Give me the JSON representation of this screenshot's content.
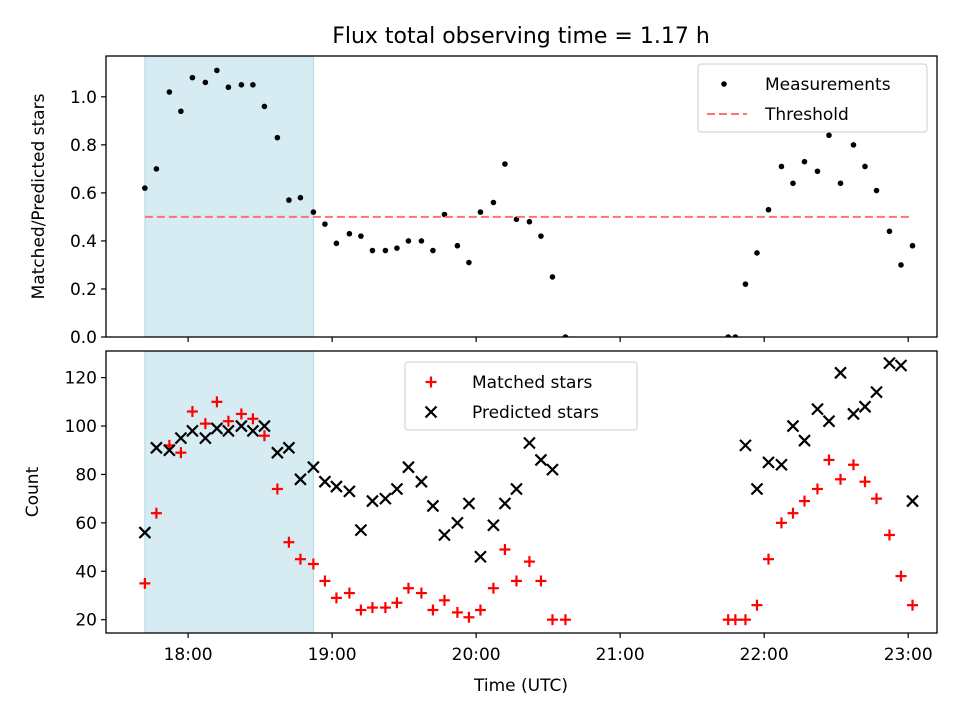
{
  "figure": {
    "title": "Flux total observing time = 1.17 h",
    "xlabel": "Time (UTC)",
    "time_ticks": [
      "18:00",
      "19:00",
      "20:00",
      "21:00",
      "22:00",
      "23:00"
    ],
    "time_tick_values": [
      18,
      19,
      20,
      21,
      22,
      23
    ],
    "xlim": [
      17.43,
      23.2
    ]
  },
  "chart_data": [
    {
      "type": "scatter",
      "ylabel": "Matched/Predicted stars",
      "ylim": [
        0,
        1.17
      ],
      "yticks": [
        0.0,
        0.2,
        0.4,
        0.6,
        0.8,
        1.0
      ],
      "ytick_labels": [
        "0.0",
        "0.2",
        "0.4",
        "0.6",
        "0.8",
        "1.0"
      ],
      "highlight_span": [
        17.7,
        18.87
      ],
      "highlight_color": "#add8e6",
      "legend_position": "upper right",
      "series": [
        {
          "name": "Measurements",
          "marker": "dot",
          "color": "#000000",
          "x": [
            17.7,
            17.78,
            17.87,
            17.95,
            18.03,
            18.12,
            18.2,
            18.28,
            18.37,
            18.45,
            18.53,
            18.62,
            18.7,
            18.78,
            18.87,
            18.95,
            19.03,
            19.12,
            19.2,
            19.28,
            19.37,
            19.45,
            19.53,
            19.62,
            19.7,
            19.78,
            19.87,
            19.95,
            20.03,
            20.12,
            20.2,
            20.28,
            20.37,
            20.45,
            20.53,
            20.62,
            21.75,
            21.8,
            21.87,
            21.95,
            22.03,
            22.12,
            22.2,
            22.28,
            22.37,
            22.45,
            22.53,
            22.62,
            22.7,
            22.78,
            22.87,
            22.95,
            23.03
          ],
          "y": [
            0.62,
            0.7,
            1.02,
            0.94,
            1.08,
            1.06,
            1.11,
            1.04,
            1.05,
            1.05,
            0.96,
            0.83,
            0.57,
            0.58,
            0.52,
            0.47,
            0.39,
            0.43,
            0.42,
            0.36,
            0.36,
            0.37,
            0.4,
            0.4,
            0.36,
            0.51,
            0.38,
            0.31,
            0.52,
            0.56,
            0.72,
            0.49,
            0.48,
            0.42,
            0.25,
            0.0,
            0.0,
            0.0,
            0.22,
            0.35,
            0.53,
            0.71,
            0.64,
            0.73,
            0.69,
            0.84,
            0.64,
            0.8,
            0.71,
            0.61,
            0.44,
            0.3,
            0.38
          ]
        },
        {
          "name": "Threshold",
          "marker": "dashed-line",
          "color": "#ff7070",
          "x": [
            17.7,
            23.03
          ],
          "y": [
            0.5,
            0.5
          ]
        }
      ]
    },
    {
      "type": "scatter",
      "ylabel": "Count",
      "ylim": [
        14.5,
        131
      ],
      "yticks": [
        20,
        40,
        60,
        80,
        100,
        120
      ],
      "ytick_labels": [
        "20",
        "40",
        "60",
        "80",
        "100",
        "120"
      ],
      "highlight_span": [
        17.7,
        18.87
      ],
      "highlight_color": "#add8e6",
      "legend_position": "upper center",
      "series": [
        {
          "name": "Matched stars",
          "marker": "plus",
          "color": "#ff0000",
          "x": [
            17.7,
            17.78,
            17.87,
            17.95,
            18.03,
            18.12,
            18.2,
            18.28,
            18.37,
            18.45,
            18.53,
            18.62,
            18.7,
            18.78,
            18.87,
            18.95,
            19.03,
            19.12,
            19.2,
            19.28,
            19.37,
            19.45,
            19.53,
            19.62,
            19.7,
            19.78,
            19.87,
            19.95,
            20.03,
            20.12,
            20.2,
            20.28,
            20.37,
            20.45,
            20.53,
            20.62,
            21.75,
            21.8,
            21.87,
            21.95,
            22.03,
            22.12,
            22.2,
            22.28,
            22.37,
            22.45,
            22.53,
            22.62,
            22.7,
            22.78,
            22.87,
            22.95,
            23.03
          ],
          "y": [
            35,
            64,
            92,
            89,
            106,
            101,
            110,
            102,
            105,
            103,
            96,
            74,
            52,
            45,
            43,
            36,
            29,
            31,
            24,
            25,
            25,
            27,
            33,
            31,
            24,
            28,
            23,
            21,
            24,
            33,
            49,
            36,
            44,
            36,
            20,
            20,
            20,
            20,
            20,
            26,
            45,
            60,
            64,
            69,
            74,
            86,
            78,
            84,
            77,
            70,
            55,
            38,
            26
          ]
        },
        {
          "name": "Predicted stars",
          "marker": "x",
          "color": "#000000",
          "x": [
            17.7,
            17.78,
            17.87,
            17.95,
            18.03,
            18.12,
            18.2,
            18.28,
            18.37,
            18.45,
            18.53,
            18.62,
            18.7,
            18.78,
            18.87,
            18.95,
            19.03,
            19.12,
            19.2,
            19.28,
            19.37,
            19.45,
            19.53,
            19.62,
            19.7,
            19.78,
            19.87,
            19.95,
            20.03,
            20.12,
            20.2,
            20.28,
            20.37,
            20.45,
            20.53,
            21.87,
            21.95,
            22.03,
            22.12,
            22.2,
            22.28,
            22.37,
            22.45,
            22.53,
            22.62,
            22.7,
            22.78,
            22.87,
            22.95,
            23.03
          ],
          "y": [
            56,
            91,
            90,
            95,
            98,
            95,
            99,
            98,
            100,
            98,
            100,
            89,
            91,
            78,
            83,
            77,
            75,
            73,
            57,
            69,
            70,
            74,
            83,
            77,
            67,
            55,
            60,
            68,
            46,
            59,
            68,
            74,
            93,
            86,
            82,
            92,
            74,
            85,
            84,
            100,
            94,
            107,
            102,
            122,
            105,
            108,
            114,
            126,
            125,
            69
          ]
        }
      ]
    }
  ]
}
